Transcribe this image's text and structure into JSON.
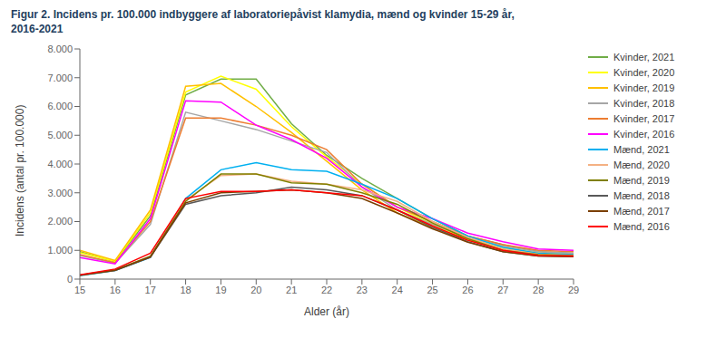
{
  "chart_data": {
    "type": "line",
    "title": "Figur 2. Incidens pr. 100.000 indbyggere af laboratoriepåvist klamydia, mænd og kvinder 15-29 år,",
    "subtitle": "2016-2021",
    "x_label": "Alder (år)",
    "y_label": "Incidens (antal pr. 100.000)",
    "x": [
      15,
      16,
      17,
      18,
      19,
      20,
      21,
      22,
      23,
      24,
      25,
      26,
      27,
      28,
      29
    ],
    "xlim": [
      15,
      29
    ],
    "xticks": [
      15,
      16,
      17,
      18,
      19,
      20,
      21,
      22,
      23,
      24,
      25,
      26,
      27,
      28,
      29
    ],
    "ylim": [
      0,
      8000
    ],
    "yticks": [
      0,
      {
        "value": 1000,
        "label": "1.000"
      },
      {
        "value": 2000,
        "label": "2.000"
      },
      {
        "value": 3000,
        "label": "3.000"
      },
      {
        "value": 4000,
        "label": "4.000"
      },
      {
        "value": 5000,
        "label": "5.000"
      },
      {
        "value": 6000,
        "label": "6.000"
      },
      {
        "value": 7000,
        "label": "7.000"
      },
      {
        "value": 8000,
        "label": "8.000"
      }
    ],
    "grid": false,
    "legend": "right",
    "series": [
      {
        "name": "Kvinder, 2021",
        "color": "#70AD47",
        "values": [
          950,
          600,
          2200,
          6400,
          6950,
          6950,
          5400,
          4300,
          3500,
          2800,
          2100,
          1500,
          1200,
          950,
          900
        ]
      },
      {
        "name": "Kvinder, 2020",
        "color": "#FFFF00",
        "values": [
          920,
          620,
          2300,
          6500,
          7050,
          6600,
          5300,
          4250,
          3300,
          2500,
          1900,
          1400,
          1100,
          900,
          850
        ]
      },
      {
        "name": "Kvinder, 2019",
        "color": "#FFC000",
        "values": [
          1000,
          650,
          2400,
          6700,
          6800,
          6000,
          5100,
          4100,
          3100,
          2300,
          1800,
          1350,
          1050,
          900,
          850
        ]
      },
      {
        "name": "Kvinder, 2018",
        "color": "#A6A6A6",
        "values": [
          820,
          550,
          1900,
          5800,
          5500,
          5200,
          4800,
          4400,
          3200,
          2400,
          1900,
          1450,
          1150,
          950,
          900
        ]
      },
      {
        "name": "Kvinder, 2017",
        "color": "#ED7D31",
        "values": [
          850,
          570,
          2000,
          5600,
          5600,
          5350,
          5000,
          4500,
          3300,
          2500,
          2000,
          1500,
          1200,
          1000,
          950
        ]
      },
      {
        "name": "Kvinder, 2016",
        "color": "#FF00FF",
        "values": [
          750,
          530,
          2100,
          6200,
          6150,
          5350,
          4850,
          4200,
          3200,
          2500,
          2100,
          1600,
          1300,
          1050,
          1000
        ]
      },
      {
        "name": "Mænd, 2021",
        "color": "#00B0F0",
        "values": [
          120,
          300,
          750,
          2800,
          3800,
          4050,
          3800,
          3750,
          3300,
          2800,
          2100,
          1500,
          1100,
          900,
          850
        ]
      },
      {
        "name": "Mænd, 2020",
        "color": "#F4B183",
        "values": [
          130,
          310,
          780,
          2750,
          3600,
          3650,
          3400,
          3300,
          3100,
          2700,
          2000,
          1450,
          1050,
          870,
          830
        ]
      },
      {
        "name": "Mænd, 2019",
        "color": "#808000",
        "values": [
          140,
          320,
          800,
          2700,
          3650,
          3650,
          3350,
          3300,
          3000,
          2600,
          1950,
          1400,
          1000,
          850,
          810
        ]
      },
      {
        "name": "Mænd, 2018",
        "color": "#595959",
        "values": [
          130,
          300,
          760,
          2600,
          2900,
          3000,
          3200,
          3100,
          2900,
          2400,
          1800,
          1300,
          950,
          800,
          780
        ]
      },
      {
        "name": "Mænd, 2017",
        "color": "#7B3F00",
        "values": [
          135,
          305,
          770,
          2650,
          3000,
          3050,
          3100,
          3000,
          2800,
          2300,
          1750,
          1280,
          950,
          800,
          780
        ]
      },
      {
        "name": "Mænd, 2016",
        "color": "#FF0000",
        "values": [
          150,
          350,
          900,
          2800,
          3050,
          3050,
          3100,
          3000,
          2900,
          2400,
          1850,
          1350,
          1000,
          820,
          800
        ]
      }
    ]
  }
}
